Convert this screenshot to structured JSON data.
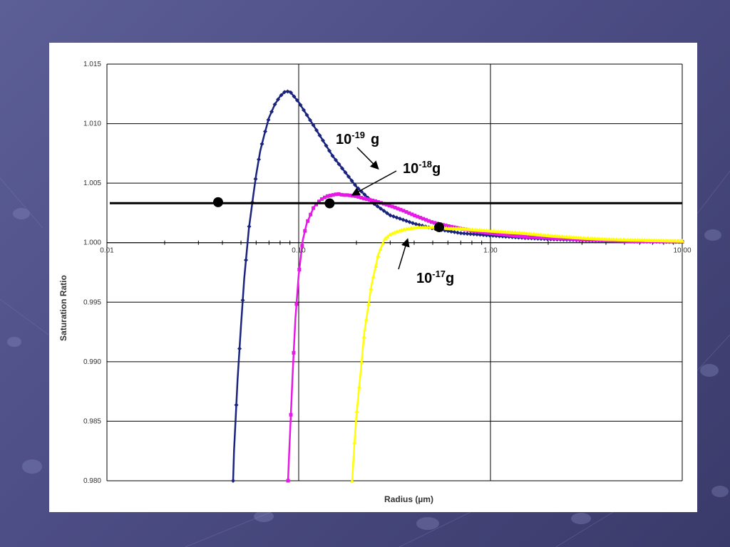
{
  "colors": {
    "background": "#50518a",
    "series_1e19": "#1a237e",
    "series_1e18": "#e619e6",
    "series_1e17": "#ffff00",
    "reference_line": "#000000"
  },
  "chart_data": {
    "type": "line",
    "title": "",
    "xlabel": "Radius (µm)",
    "ylabel": "Saturation Ratio",
    "x_scale": "log",
    "xlim": [
      0.01,
      10
    ],
    "ylim": [
      0.98,
      1.015
    ],
    "grid": true,
    "x_ticks": [
      0.01,
      0.1,
      1,
      10
    ],
    "x_tick_labels": [
      "0.01",
      "0.10",
      "1.00",
      "10.00"
    ],
    "y_ticks": [
      1.015,
      1.01,
      1.005,
      1.0,
      0.995,
      0.99,
      0.985,
      0.98
    ],
    "y_tick_labels": [
      "1.015",
      "1.010",
      "1.005",
      "1.000",
      "0.995",
      "0.990",
      "0.985",
      "0.980"
    ],
    "reference_line": {
      "y": 1.00332
    },
    "series": [
      {
        "name": "10^-19 g",
        "marker": "diamond",
        "color": "#1a237e",
        "x": [
          0.0455,
          0.046,
          0.047,
          0.048,
          0.05,
          0.052,
          0.055,
          0.058,
          0.06,
          0.063,
          0.066,
          0.07,
          0.075,
          0.08,
          0.085,
          0.09,
          0.1,
          0.12,
          0.15,
          0.2,
          0.25,
          0.3,
          0.4,
          0.5,
          0.7,
          1.0,
          1.5,
          2,
          3,
          5,
          7,
          10
        ],
        "y": [
          0.98,
          0.9825,
          0.9855,
          0.9885,
          0.993,
          0.997,
          1.0012,
          1.004,
          1.0057,
          1.0077,
          1.009,
          1.0105,
          1.0116,
          1.0123,
          1.0127,
          1.0127,
          1.0118,
          1.0098,
          1.0073,
          1.0047,
          1.0032,
          1.0023,
          1.0016,
          1.0012,
          1.0008,
          1.0006,
          1.0004,
          1.0003,
          1.0002,
          1.00012,
          1.00008,
          1.00006
        ]
      },
      {
        "name": "10^-18 g",
        "marker": "square",
        "color": "#e619e6",
        "x": [
          0.088,
          0.089,
          0.091,
          0.093,
          0.096,
          0.1,
          0.105,
          0.11,
          0.12,
          0.13,
          0.14,
          0.15,
          0.16,
          0.17,
          0.18,
          0.2,
          0.22,
          0.25,
          0.3,
          0.35,
          0.4,
          0.5,
          0.6,
          0.8,
          1.0,
          1.5,
          2,
          3,
          5,
          7,
          10
        ],
        "y": [
          0.98,
          0.982,
          0.9855,
          0.989,
          0.9935,
          0.9973,
          1.0002,
          1.0016,
          1.003,
          1.0036,
          1.0039,
          1.004,
          1.0041,
          1.004,
          1.004,
          1.0039,
          1.0037,
          1.0035,
          1.0031,
          1.0027,
          1.0023,
          1.0017,
          1.0014,
          1.001,
          1.0008,
          1.0005,
          1.0004,
          1.00025,
          1.00015,
          1.0001,
          1.00008
        ]
      },
      {
        "name": "10^-17 g",
        "marker": "triangle",
        "color": "#ffff00",
        "x": [
          0.19,
          0.195,
          0.2,
          0.21,
          0.22,
          0.24,
          0.26,
          0.28,
          0.3,
          0.32,
          0.35,
          0.38,
          0.42,
          0.46,
          0.5,
          0.55,
          0.6,
          0.7,
          0.8,
          1.0,
          1.2,
          1.5,
          2,
          3,
          4,
          5,
          7,
          10
        ],
        "y": [
          0.98,
          0.983,
          0.9855,
          0.989,
          0.9925,
          0.9965,
          0.999,
          1.0003,
          1.0007,
          1.0009,
          1.0011,
          1.0012,
          1.0013,
          1.0013,
          1.0013,
          1.0013,
          1.0012,
          1.0012,
          1.0011,
          1.001,
          1.0009,
          1.0008,
          1.0006,
          1.0004,
          1.0003,
          1.00025,
          1.0002,
          1.00015
        ]
      }
    ],
    "critical_points": [
      {
        "x": 0.038,
        "y": 1.0034
      },
      {
        "x": 0.145,
        "y": 1.0033
      },
      {
        "x": 0.54,
        "y": 1.0013
      }
    ],
    "annotations": [
      {
        "base": "10",
        "exp": "-19",
        "unit": "g",
        "target_series": 0,
        "target": {
          "x": 0.26,
          "y": 1.0062
        }
      },
      {
        "base": "10",
        "exp": "-18",
        "unit": "g",
        "target_series": 1,
        "target": {
          "x": 0.19,
          "y": 1.004
        }
      },
      {
        "base": "10",
        "exp": "-17",
        "unit": "g",
        "target_series": 2,
        "target": {
          "x": 0.37,
          "y": 1.0003
        }
      }
    ]
  }
}
